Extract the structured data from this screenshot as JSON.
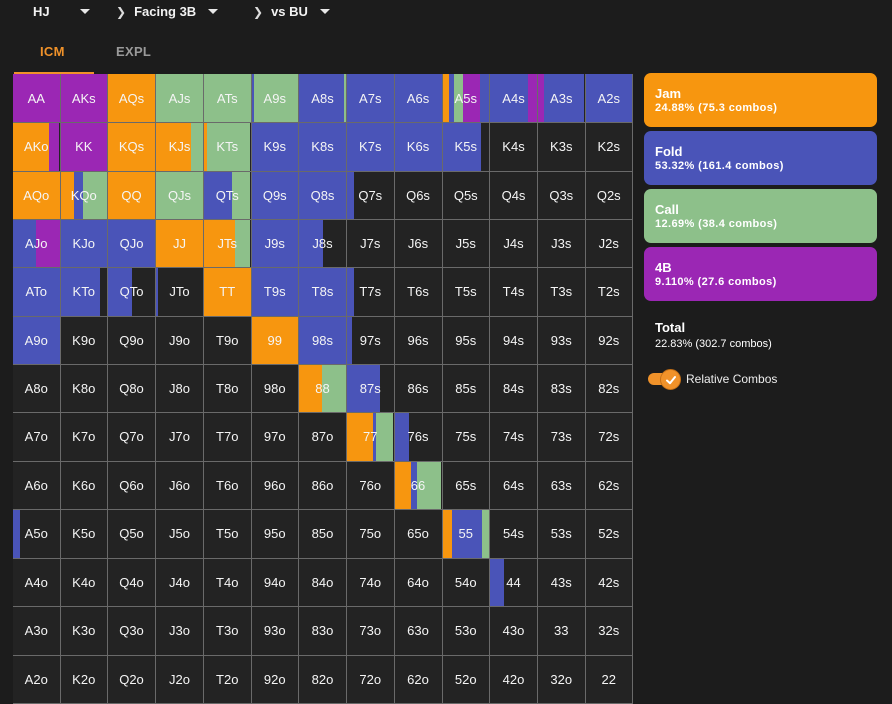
{
  "breadcrumb": {
    "position": "HJ",
    "action": "Facing 3B",
    "opponent": "vs BU"
  },
  "tabs": [
    {
      "label": "ICM",
      "active": true
    },
    {
      "label": "EXPL",
      "active": false
    }
  ],
  "colors": {
    "jam": "#f7960f",
    "fold": "#4a54b8",
    "call": "#8dc08a",
    "four_bet": "#9b27b4",
    "empty": "#232323"
  },
  "legend": {
    "jam": {
      "name": "Jam",
      "stats": "24.88% (75.3 combos)"
    },
    "fold": {
      "name": "Fold",
      "stats": "53.32% (161.4 combos)"
    },
    "call": {
      "name": "Call",
      "stats": "12.69% (38.4 combos)"
    },
    "four_bet": {
      "name": "4B",
      "stats": "9.110% (27.6 combos)"
    },
    "total": {
      "name": "Total",
      "stats": "22.83% (302.7 combos)"
    }
  },
  "toggle": {
    "label": "Relative Combos",
    "checked": true
  },
  "grid": {
    "rows": [
      [
        {
          "h": "AA",
          "a": [
            [
              "four_bet",
              1.0
            ]
          ]
        },
        {
          "h": "AKs",
          "a": [
            [
              "four_bet",
              1.0
            ]
          ]
        },
        {
          "h": "AQs",
          "a": [
            [
              "jam",
              1.0
            ]
          ]
        },
        {
          "h": "AJs",
          "a": [
            [
              "call",
              1.0
            ]
          ]
        },
        {
          "h": "ATs",
          "a": [
            [
              "call",
              1.0
            ]
          ]
        },
        {
          "h": "A9s",
          "a": [
            [
              "fold",
              0.06
            ],
            [
              "call",
              0.94
            ]
          ]
        },
        {
          "h": "A8s",
          "a": [
            [
              "fold",
              0.96
            ],
            [
              "call",
              0.04
            ]
          ]
        },
        {
          "h": "A7s",
          "a": [
            [
              "fold",
              1.0
            ]
          ]
        },
        {
          "h": "A6s",
          "a": [
            [
              "fold",
              1.0
            ]
          ]
        },
        {
          "h": "A5s",
          "a": [
            [
              "jam",
              0.15
            ],
            [
              "fold",
              0.1
            ],
            [
              "call",
              0.2
            ],
            [
              "four_bet",
              0.35
            ],
            [
              "fold",
              0.2
            ]
          ]
        },
        {
          "h": "A4s",
          "a": [
            [
              "fold",
              0.8
            ],
            [
              "four_bet",
              0.2
            ]
          ]
        },
        {
          "h": "A3s",
          "a": [
            [
              "four_bet",
              0.12
            ],
            [
              "fold",
              0.88
            ]
          ]
        },
        {
          "h": "A2s",
          "a": [
            [
              "fold",
              1.0
            ]
          ]
        }
      ],
      [
        {
          "h": "AKo",
          "a": [
            [
              "jam",
              0.78
            ],
            [
              "four_bet",
              0.22
            ]
          ]
        },
        {
          "h": "KK",
          "a": [
            [
              "four_bet",
              1.0
            ]
          ]
        },
        {
          "h": "KQs",
          "a": [
            [
              "jam",
              1.0
            ]
          ]
        },
        {
          "h": "KJs",
          "a": [
            [
              "jam",
              0.74
            ],
            [
              "call",
              0.26
            ]
          ]
        },
        {
          "h": "KTs",
          "a": [
            [
              "jam",
              0.06
            ],
            [
              "call",
              0.94
            ]
          ]
        },
        {
          "h": "K9s",
          "a": [
            [
              "fold",
              1.0
            ]
          ]
        },
        {
          "h": "K8s",
          "a": [
            [
              "fold",
              1.0
            ]
          ]
        },
        {
          "h": "K7s",
          "a": [
            [
              "fold",
              1.0
            ]
          ]
        },
        {
          "h": "K6s",
          "a": [
            [
              "fold",
              1.0
            ]
          ]
        },
        {
          "h": "K5s",
          "a": [
            [
              "fold",
              0.82
            ],
            [
              "empty",
              0.18
            ]
          ]
        },
        {
          "h": "K4s",
          "a": []
        },
        {
          "h": "K3s",
          "a": []
        },
        {
          "h": "K2s",
          "a": []
        }
      ],
      [
        {
          "h": "AQo",
          "a": [
            [
              "jam",
              1.0
            ]
          ]
        },
        {
          "h": "KQo",
          "a": [
            [
              "jam",
              0.3
            ],
            [
              "fold",
              0.18
            ],
            [
              "call",
              0.52
            ]
          ]
        },
        {
          "h": "QQ",
          "a": [
            [
              "jam",
              1.0
            ]
          ]
        },
        {
          "h": "QJs",
          "a": [
            [
              "call",
              1.0
            ]
          ]
        },
        {
          "h": "QTs",
          "a": [
            [
              "fold",
              0.6
            ],
            [
              "call",
              0.4
            ]
          ]
        },
        {
          "h": "Q9s",
          "a": [
            [
              "fold",
              1.0
            ]
          ]
        },
        {
          "h": "Q8s",
          "a": [
            [
              "fold",
              1.0
            ]
          ]
        },
        {
          "h": "Q7s",
          "a": [
            [
              "fold",
              0.14
            ],
            [
              "empty",
              0.86
            ]
          ]
        },
        {
          "h": "Q6s",
          "a": []
        },
        {
          "h": "Q5s",
          "a": []
        },
        {
          "h": "Q4s",
          "a": []
        },
        {
          "h": "Q3s",
          "a": []
        },
        {
          "h": "Q2s",
          "a": []
        }
      ],
      [
        {
          "h": "AJo",
          "a": [
            [
              "fold",
              0.5
            ],
            [
              "four_bet",
              0.5
            ]
          ]
        },
        {
          "h": "KJo",
          "a": [
            [
              "fold",
              1.0
            ]
          ]
        },
        {
          "h": "QJo",
          "a": [
            [
              "fold",
              1.0
            ]
          ]
        },
        {
          "h": "JJ",
          "a": [
            [
              "jam",
              1.0
            ]
          ]
        },
        {
          "h": "JTs",
          "a": [
            [
              "jam",
              0.66
            ],
            [
              "call",
              0.34
            ]
          ]
        },
        {
          "h": "J9s",
          "a": [
            [
              "fold",
              1.0
            ]
          ]
        },
        {
          "h": "J8s",
          "a": [
            [
              "fold",
              0.5
            ],
            [
              "empty",
              0.5
            ]
          ]
        },
        {
          "h": "J7s",
          "a": []
        },
        {
          "h": "J6s",
          "a": []
        },
        {
          "h": "J5s",
          "a": []
        },
        {
          "h": "J4s",
          "a": []
        },
        {
          "h": "J3s",
          "a": []
        },
        {
          "h": "J2s",
          "a": []
        }
      ],
      [
        {
          "h": "ATo",
          "a": [
            [
              "fold",
              1.0
            ]
          ]
        },
        {
          "h": "KTo",
          "a": [
            [
              "fold",
              0.84
            ],
            [
              "empty",
              0.16
            ]
          ]
        },
        {
          "h": "QTo",
          "a": [
            [
              "fold",
              0.52
            ],
            [
              "empty",
              0.48
            ]
          ]
        },
        {
          "h": "JTo",
          "a": [
            [
              "fold",
              0.04
            ],
            [
              "empty",
              0.96
            ]
          ]
        },
        {
          "h": "TT",
          "a": [
            [
              "jam",
              1.0
            ]
          ]
        },
        {
          "h": "T9s",
          "a": [
            [
              "fold",
              1.0
            ]
          ]
        },
        {
          "h": "T8s",
          "a": [
            [
              "fold",
              1.0
            ]
          ]
        },
        {
          "h": "T7s",
          "a": [
            [
              "fold",
              0.14
            ],
            [
              "empty",
              0.86
            ]
          ]
        },
        {
          "h": "T6s",
          "a": []
        },
        {
          "h": "T5s",
          "a": []
        },
        {
          "h": "T4s",
          "a": []
        },
        {
          "h": "T3s",
          "a": []
        },
        {
          "h": "T2s",
          "a": []
        }
      ],
      [
        {
          "h": "A9o",
          "a": [
            [
              "fold",
              1.0
            ]
          ]
        },
        {
          "h": "K9o",
          "a": []
        },
        {
          "h": "Q9o",
          "a": []
        },
        {
          "h": "J9o",
          "a": []
        },
        {
          "h": "T9o",
          "a": []
        },
        {
          "h": "99",
          "a": [
            [
              "jam",
              1.0
            ]
          ]
        },
        {
          "h": "98s",
          "a": [
            [
              "fold",
              1.0
            ]
          ]
        },
        {
          "h": "97s",
          "a": [
            [
              "fold",
              0.1
            ],
            [
              "empty",
              0.9
            ]
          ]
        },
        {
          "h": "96s",
          "a": []
        },
        {
          "h": "95s",
          "a": []
        },
        {
          "h": "94s",
          "a": []
        },
        {
          "h": "93s",
          "a": []
        },
        {
          "h": "92s",
          "a": []
        }
      ],
      [
        {
          "h": "A8o",
          "a": []
        },
        {
          "h": "K8o",
          "a": []
        },
        {
          "h": "Q8o",
          "a": []
        },
        {
          "h": "J8o",
          "a": []
        },
        {
          "h": "T8o",
          "a": []
        },
        {
          "h": "98o",
          "a": []
        },
        {
          "h": "88",
          "a": [
            [
              "jam",
              0.48
            ],
            [
              "call",
              0.52
            ]
          ]
        },
        {
          "h": "87s",
          "a": [
            [
              "fold",
              0.7
            ],
            [
              "empty",
              0.3
            ]
          ]
        },
        {
          "h": "86s",
          "a": []
        },
        {
          "h": "85s",
          "a": []
        },
        {
          "h": "84s",
          "a": []
        },
        {
          "h": "83s",
          "a": []
        },
        {
          "h": "82s",
          "a": []
        }
      ],
      [
        {
          "h": "A7o",
          "a": []
        },
        {
          "h": "K7o",
          "a": []
        },
        {
          "h": "Q7o",
          "a": []
        },
        {
          "h": "J7o",
          "a": []
        },
        {
          "h": "T7o",
          "a": []
        },
        {
          "h": "97o",
          "a": []
        },
        {
          "h": "87o",
          "a": []
        },
        {
          "h": "77",
          "a": [
            [
              "jam",
              0.55
            ],
            [
              "fold",
              0.08
            ],
            [
              "call",
              0.37
            ]
          ]
        },
        {
          "h": "76s",
          "a": [
            [
              "fold",
              0.3
            ],
            [
              "empty",
              0.7
            ]
          ]
        },
        {
          "h": "75s",
          "a": []
        },
        {
          "h": "74s",
          "a": []
        },
        {
          "h": "73s",
          "a": []
        },
        {
          "h": "72s",
          "a": []
        }
      ],
      [
        {
          "h": "A6o",
          "a": []
        },
        {
          "h": "K6o",
          "a": []
        },
        {
          "h": "Q6o",
          "a": []
        },
        {
          "h": "J6o",
          "a": []
        },
        {
          "h": "T6o",
          "a": []
        },
        {
          "h": "96o",
          "a": []
        },
        {
          "h": "86o",
          "a": []
        },
        {
          "h": "76o",
          "a": []
        },
        {
          "h": "66",
          "a": [
            [
              "jam",
              0.35
            ],
            [
              "fold",
              0.13
            ],
            [
              "call",
              0.52
            ]
          ]
        },
        {
          "h": "65s",
          "a": []
        },
        {
          "h": "64s",
          "a": []
        },
        {
          "h": "63s",
          "a": []
        },
        {
          "h": "62s",
          "a": []
        }
      ],
      [
        {
          "h": "A5o",
          "a": [
            [
              "fold",
              0.16
            ],
            [
              "empty",
              0.84
            ]
          ]
        },
        {
          "h": "K5o",
          "a": []
        },
        {
          "h": "Q5o",
          "a": []
        },
        {
          "h": "J5o",
          "a": []
        },
        {
          "h": "T5o",
          "a": []
        },
        {
          "h": "95o",
          "a": []
        },
        {
          "h": "85o",
          "a": []
        },
        {
          "h": "75o",
          "a": []
        },
        {
          "h": "65o",
          "a": []
        },
        {
          "h": "55",
          "a": [
            [
              "jam",
              0.2
            ],
            [
              "fold",
              0.65
            ],
            [
              "call",
              0.15
            ]
          ]
        },
        {
          "h": "54s",
          "a": []
        },
        {
          "h": "53s",
          "a": []
        },
        {
          "h": "52s",
          "a": []
        }
      ],
      [
        {
          "h": "A4o",
          "a": []
        },
        {
          "h": "K4o",
          "a": []
        },
        {
          "h": "Q4o",
          "a": []
        },
        {
          "h": "J4o",
          "a": []
        },
        {
          "h": "T4o",
          "a": []
        },
        {
          "h": "94o",
          "a": []
        },
        {
          "h": "84o",
          "a": []
        },
        {
          "h": "74o",
          "a": []
        },
        {
          "h": "64o",
          "a": []
        },
        {
          "h": "54o",
          "a": []
        },
        {
          "h": "44",
          "a": [
            [
              "fold",
              0.3
            ],
            [
              "empty",
              0.7
            ]
          ]
        },
        {
          "h": "43s",
          "a": []
        },
        {
          "h": "42s",
          "a": []
        }
      ],
      [
        {
          "h": "A3o",
          "a": []
        },
        {
          "h": "K3o",
          "a": []
        },
        {
          "h": "Q3o",
          "a": []
        },
        {
          "h": "J3o",
          "a": []
        },
        {
          "h": "T3o",
          "a": []
        },
        {
          "h": "93o",
          "a": []
        },
        {
          "h": "83o",
          "a": []
        },
        {
          "h": "73o",
          "a": []
        },
        {
          "h": "63o",
          "a": []
        },
        {
          "h": "53o",
          "a": []
        },
        {
          "h": "43o",
          "a": []
        },
        {
          "h": "33",
          "a": []
        },
        {
          "h": "32s",
          "a": []
        }
      ],
      [
        {
          "h": "A2o",
          "a": []
        },
        {
          "h": "K2o",
          "a": []
        },
        {
          "h": "Q2o",
          "a": []
        },
        {
          "h": "J2o",
          "a": []
        },
        {
          "h": "T2o",
          "a": []
        },
        {
          "h": "92o",
          "a": []
        },
        {
          "h": "82o",
          "a": []
        },
        {
          "h": "72o",
          "a": []
        },
        {
          "h": "62o",
          "a": []
        },
        {
          "h": "52o",
          "a": []
        },
        {
          "h": "42o",
          "a": []
        },
        {
          "h": "32o",
          "a": []
        },
        {
          "h": "22",
          "a": []
        }
      ]
    ]
  }
}
